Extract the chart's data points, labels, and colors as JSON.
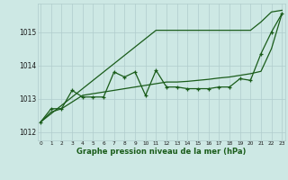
{
  "x": [
    0,
    1,
    2,
    3,
    4,
    5,
    6,
    7,
    8,
    9,
    10,
    11,
    12,
    13,
    14,
    15,
    16,
    17,
    18,
    19,
    20,
    21,
    22,
    23
  ],
  "line_max": [
    1012.3,
    1012.55,
    1012.8,
    1013.05,
    1013.3,
    1013.55,
    1013.8,
    1014.05,
    1014.3,
    1014.55,
    1014.8,
    1015.05,
    1015.05,
    1015.05,
    1015.05,
    1015.05,
    1015.05,
    1015.05,
    1015.05,
    1015.05,
    1015.05,
    1015.3,
    1015.6,
    1015.65
  ],
  "line_actual": [
    1012.3,
    1012.7,
    1012.7,
    1013.25,
    1013.05,
    1013.05,
    1013.05,
    1013.8,
    1013.65,
    1013.8,
    1013.1,
    1013.85,
    1013.35,
    1013.35,
    1013.3,
    1013.3,
    1013.3,
    1013.35,
    1013.35,
    1013.6,
    1013.55,
    1014.35,
    1015.0,
    1015.55
  ],
  "line_min": [
    1012.3,
    1012.6,
    1012.7,
    1012.9,
    1013.1,
    1013.15,
    1013.2,
    1013.25,
    1013.3,
    1013.35,
    1013.4,
    1013.45,
    1013.5,
    1013.5,
    1013.52,
    1013.55,
    1013.58,
    1013.62,
    1013.65,
    1013.7,
    1013.75,
    1013.82,
    1014.5,
    1015.55
  ],
  "bg_color": "#cde8e4",
  "line_color": "#1a5c1a",
  "grid_color": "#b0cccc",
  "xlabel": "Graphe pression niveau de la mer (hPa)",
  "ylim": [
    1011.75,
    1015.85
  ],
  "xlim": [
    -0.3,
    23.3
  ],
  "yticks": [
    1012,
    1013,
    1014,
    1015
  ],
  "xticks": [
    0,
    1,
    2,
    3,
    4,
    5,
    6,
    7,
    8,
    9,
    10,
    11,
    12,
    13,
    14,
    15,
    16,
    17,
    18,
    19,
    20,
    21,
    22,
    23
  ]
}
